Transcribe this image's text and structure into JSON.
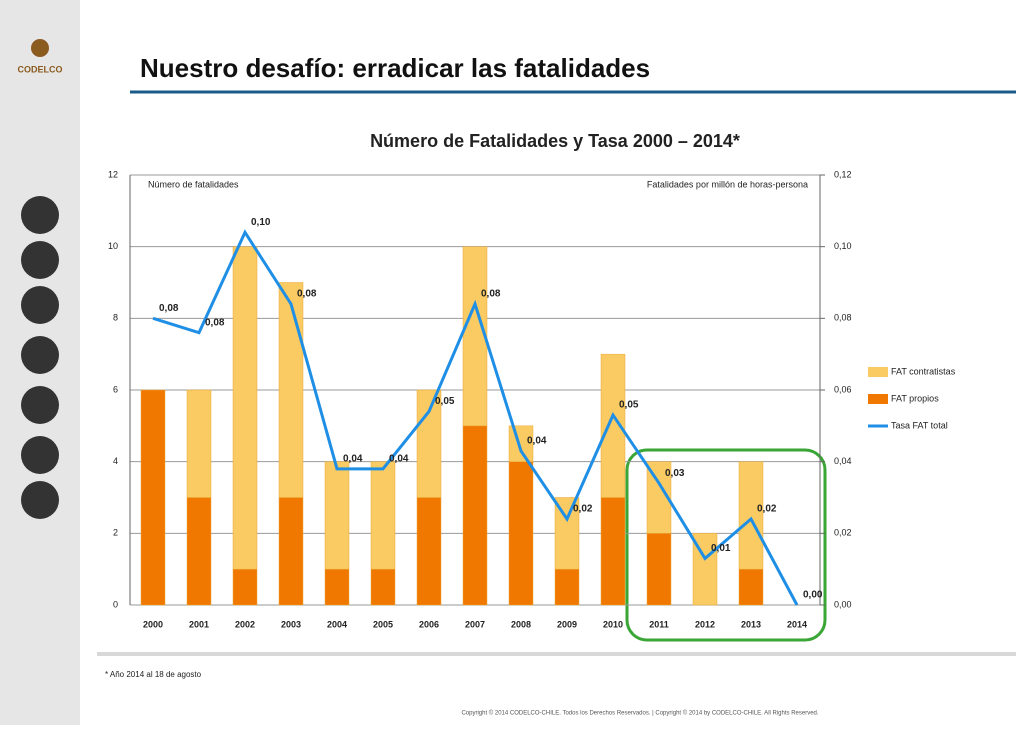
{
  "header": {
    "title": "Nuestro desafío: erradicar las fatalidades",
    "logo": "CODELCO"
  },
  "chart_data": {
    "type": "bar",
    "stacked": true,
    "title": "Número de Fatalidades y Tasa 2000 – 2014*",
    "ylabel": "Número de fatalidades",
    "y2label": "Fatalidades por millón de horas-persona",
    "categories": [
      "2000",
      "2001",
      "2002",
      "2003",
      "2004",
      "2005",
      "2006",
      "2007",
      "2008",
      "2009",
      "2010",
      "2011",
      "2012",
      "2013",
      "2014"
    ],
    "series": [
      {
        "name": "FAT propios",
        "color": "#f07800",
        "values": [
          6,
          3,
          1,
          3,
          1,
          1,
          3,
          5,
          4,
          1,
          3,
          2,
          0,
          1,
          0
        ]
      },
      {
        "name": "FAT contratistas",
        "color": "#fbcb63",
        "values": [
          0,
          3,
          9,
          6,
          3,
          3,
          3,
          5,
          1,
          2,
          4,
          2,
          2,
          3,
          0
        ]
      },
      {
        "name": "Tasa FAT total",
        "type": "line",
        "axis": "y2",
        "color": "#1f8fe6",
        "values": [
          0.08,
          0.076,
          0.104,
          0.084,
          0.038,
          0.038,
          0.054,
          0.084,
          0.043,
          0.024,
          0.053,
          0.034,
          0.013,
          0.024,
          0.0
        ],
        "value_labels": [
          "0,08",
          "0,08",
          "0,10",
          "0,08",
          "0,04",
          "0,04",
          "0,05",
          "0,08",
          "0,04",
          "0,02",
          "0,05",
          "0,03",
          "0,01",
          "0,02",
          "0,00"
        ]
      }
    ],
    "ylim": [
      0,
      12
    ],
    "yticks": [
      0,
      2,
      4,
      6,
      8,
      10,
      12
    ],
    "y2lim": [
      0,
      0.12
    ],
    "y2ticks": [
      {
        "value": 0,
        "label": "0,00"
      },
      {
        "value": 0.02,
        "label": "0,02"
      },
      {
        "value": 0.04,
        "label": "0,04"
      },
      {
        "value": 0.06,
        "label": "0,06"
      },
      {
        "value": 0.08,
        "label": "0,08"
      },
      {
        "value": 0.1,
        "label": "0,10"
      },
      {
        "value": 0.12,
        "label": "0,12"
      }
    ],
    "grid": true,
    "legend": "right"
  },
  "footnote": "* Año 2014 al 18 de agosto",
  "copyright": "Copyright © 2014 CODELCO-CHILE. Todos los Derechos Reservados. | Copyright © 2014 by CODELCO-CHILE. All Rights Reserved."
}
